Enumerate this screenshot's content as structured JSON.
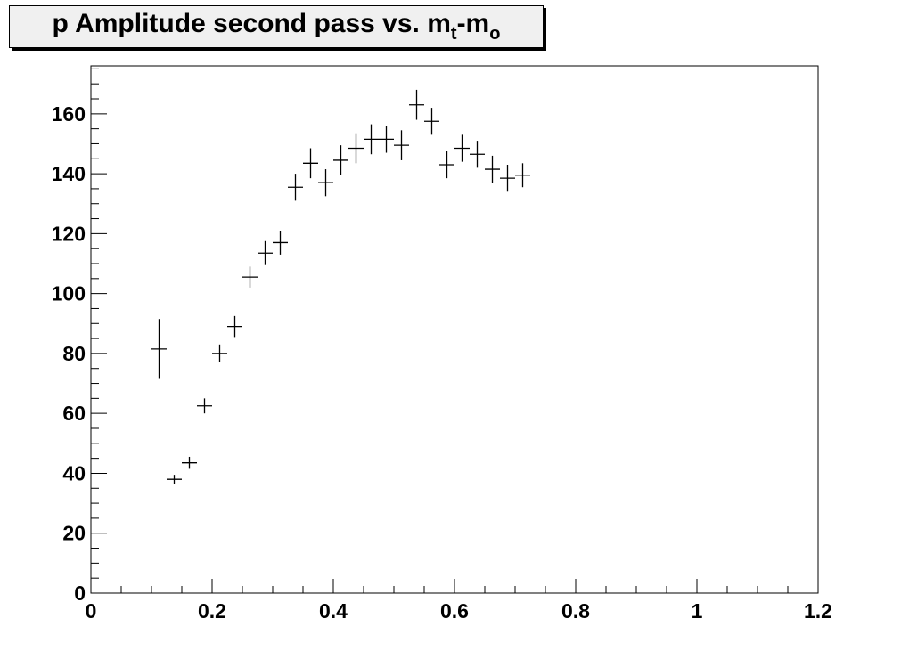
{
  "title": {
    "main": "p Amplitude second pass vs. m",
    "sub1": "t",
    "mid": "-m",
    "sub2": "o"
  },
  "chart_data": {
    "type": "scatter",
    "title": "p Amplitude second pass vs. m_t-m_o",
    "xlabel": "",
    "ylabel": "",
    "xlim": [
      0,
      1.2
    ],
    "ylim": [
      0,
      176
    ],
    "grid": false,
    "x_ticks": [
      "0",
      "0.2",
      "0.4",
      "0.6",
      "0.8",
      "1",
      "1.2"
    ],
    "y_ticks": [
      "0",
      "20",
      "40",
      "60",
      "80",
      "100",
      "120",
      "140",
      "160"
    ],
    "x_tick_values": [
      0,
      0.2,
      0.4,
      0.6,
      0.8,
      1.0,
      1.2
    ],
    "y_tick_values": [
      0,
      20,
      40,
      60,
      80,
      100,
      120,
      140,
      160
    ],
    "x_half_width": 0.0125,
    "points": [
      {
        "x": 0.1125,
        "y": 81.5,
        "err": 10
      },
      {
        "x": 0.1375,
        "y": 38,
        "err": 1.5
      },
      {
        "x": 0.1625,
        "y": 43.5,
        "err": 2
      },
      {
        "x": 0.1875,
        "y": 62.5,
        "err": 2.5
      },
      {
        "x": 0.2125,
        "y": 80,
        "err": 3
      },
      {
        "x": 0.2375,
        "y": 89,
        "err": 3.5
      },
      {
        "x": 0.2625,
        "y": 105.5,
        "err": 3.5
      },
      {
        "x": 0.2875,
        "y": 113.5,
        "err": 4
      },
      {
        "x": 0.3125,
        "y": 117,
        "err": 4
      },
      {
        "x": 0.3375,
        "y": 135.5,
        "err": 4.5
      },
      {
        "x": 0.3625,
        "y": 143.5,
        "err": 5
      },
      {
        "x": 0.3875,
        "y": 137,
        "err": 4.5
      },
      {
        "x": 0.4125,
        "y": 144.5,
        "err": 5
      },
      {
        "x": 0.4375,
        "y": 148.5,
        "err": 5
      },
      {
        "x": 0.4625,
        "y": 151.5,
        "err": 5
      },
      {
        "x": 0.4875,
        "y": 151.5,
        "err": 4.5
      },
      {
        "x": 0.5125,
        "y": 149.5,
        "err": 5
      },
      {
        "x": 0.5375,
        "y": 163,
        "err": 5
      },
      {
        "x": 0.5625,
        "y": 157.5,
        "err": 4.5
      },
      {
        "x": 0.5875,
        "y": 143,
        "err": 4.5
      },
      {
        "x": 0.6125,
        "y": 148.5,
        "err": 4.5
      },
      {
        "x": 0.6375,
        "y": 146.5,
        "err": 4.5
      },
      {
        "x": 0.6625,
        "y": 141.5,
        "err": 4.5
      },
      {
        "x": 0.6875,
        "y": 138.5,
        "err": 4.5
      },
      {
        "x": 0.7125,
        "y": 139.5,
        "err": 4
      }
    ]
  }
}
